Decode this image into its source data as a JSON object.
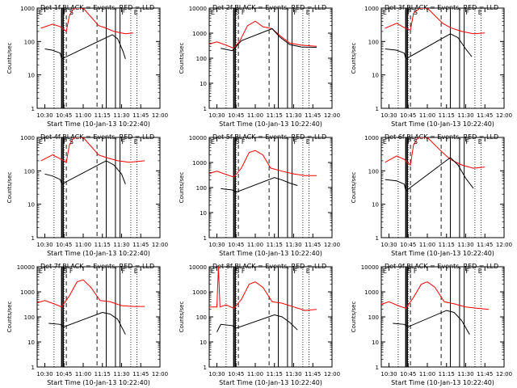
{
  "chart_data": [
    {
      "type": "line",
      "title": "Det 1f BLACK = Events, RED = LLD",
      "xlabel": "Start Time (10-Jan-13 10:22:40)",
      "ylabel": "Counts/sec",
      "xticks": [
        "10:30",
        "10:45",
        "11:00",
        "11:15",
        "11:30",
        "11:45",
        "12:00"
      ],
      "yticks": [
        "1",
        "10",
        "100",
        "1000"
      ],
      "ylim": [
        1,
        1000
      ],
      "yscale": "log",
      "flag_letters": [
        "E",
        "F",
        "S",
        "F",
        "E"
      ],
      "series": [
        {
          "color": "#ff0000",
          "points": [
            [
              10.45,
              250
            ],
            [
              10.6,
              330
            ],
            [
              10.7,
              280
            ],
            [
              10.78,
              200
            ],
            [
              10.82,
              600
            ],
            [
              10.88,
              1000
            ],
            [
              11.0,
              1000
            ],
            [
              11.2,
              300
            ],
            [
              11.3,
              250
            ],
            [
              11.4,
              200
            ],
            [
              11.55,
              170
            ],
            [
              11.65,
              180
            ]
          ]
        },
        {
          "color": "#000000",
          "points": [
            [
              10.5,
              60
            ],
            [
              10.6,
              55
            ],
            [
              10.7,
              45
            ],
            [
              10.72,
              30
            ],
            [
              11.38,
              160
            ],
            [
              11.45,
              120
            ],
            [
              11.52,
              50
            ],
            [
              11.55,
              30
            ]
          ]
        }
      ]
    },
    {
      "type": "line",
      "title": "Det 2f BLACK = Events, RED = LLD",
      "xlabel": "Start Time (10-Jan-13 10:22:40)",
      "ylabel": "Counts/sec",
      "xticks": [
        "10:30",
        "10:45",
        "11:00",
        "11:15",
        "11:30",
        "11:45",
        "12:00"
      ],
      "yticks": [
        "1",
        "10",
        "100",
        "1000",
        "10000"
      ],
      "ylim": [
        1,
        10000
      ],
      "yscale": "log",
      "flag_letters": [
        "E",
        "S",
        "F",
        "F",
        "E"
      ],
      "series": [
        {
          "color": "#ff0000",
          "points": [
            [
              10.38,
              350
            ],
            [
              10.5,
              450
            ],
            [
              10.62,
              330
            ],
            [
              10.72,
              250
            ],
            [
              10.8,
              500
            ],
            [
              10.9,
              2000
            ],
            [
              11.0,
              3000
            ],
            [
              11.1,
              1800
            ],
            [
              11.22,
              1500
            ],
            [
              11.32,
              800
            ],
            [
              11.45,
              400
            ],
            [
              11.6,
              330
            ],
            [
              11.8,
              300
            ]
          ]
        },
        {
          "color": "#000000",
          "points": [
            [
              10.55,
              250
            ],
            [
              10.7,
              200
            ],
            [
              10.82,
              500
            ],
            [
              11.22,
              1500
            ],
            [
              11.32,
              700
            ],
            [
              11.45,
              350
            ],
            [
              11.6,
              280
            ],
            [
              11.8,
              270
            ]
          ]
        }
      ]
    },
    {
      "type": "line",
      "title": "Det 3f BLACK = Events, RED = LLD",
      "xlabel": "Start Time (10-Jan-13 10:22:40)",
      "ylabel": "Counts/sec",
      "xticks": [
        "10:30",
        "10:45",
        "11:00",
        "11:15",
        "11:30",
        "11:45",
        "12:00"
      ],
      "yticks": [
        "1",
        "10",
        "100",
        "1000"
      ],
      "ylim": [
        1,
        1000
      ],
      "yscale": "log",
      "flag_letters": [
        "E",
        "F",
        "S",
        "F",
        "E"
      ],
      "series": [
        {
          "color": "#ff0000",
          "points": [
            [
              10.45,
              250
            ],
            [
              10.6,
              350
            ],
            [
              10.7,
              260
            ],
            [
              10.78,
              220
            ],
            [
              10.82,
              700
            ],
            [
              10.9,
              1000
            ],
            [
              11.0,
              1000
            ],
            [
              11.2,
              350
            ],
            [
              11.3,
              260
            ],
            [
              11.45,
              200
            ],
            [
              11.6,
              170
            ],
            [
              11.75,
              180
            ]
          ]
        },
        {
          "color": "#000000",
          "points": [
            [
              10.45,
              60
            ],
            [
              10.6,
              55
            ],
            [
              10.7,
              45
            ],
            [
              10.72,
              30
            ],
            [
              11.3,
              170
            ],
            [
              11.4,
              130
            ],
            [
              11.5,
              60
            ],
            [
              11.58,
              35
            ]
          ]
        }
      ]
    },
    {
      "type": "line",
      "title": "Det 4f BLACK = Events, RED = LLD",
      "xlabel": "Start Time (10-Jan-13 10:22:40)",
      "ylabel": "Counts/sec",
      "xticks": [
        "10:30",
        "10:45",
        "11:00",
        "11:15",
        "11:30",
        "11:45",
        "12:00"
      ],
      "yticks": [
        "1",
        "10",
        "100",
        "1000"
      ],
      "ylim": [
        1,
        1000
      ],
      "yscale": "log",
      "flag_letters": [
        "E",
        "F",
        "S",
        "F",
        "E"
      ],
      "series": [
        {
          "color": "#ff0000",
          "points": [
            [
              10.45,
              200
            ],
            [
              10.6,
              300
            ],
            [
              10.7,
              230
            ],
            [
              10.78,
              180
            ],
            [
              10.82,
              600
            ],
            [
              10.88,
              1000
            ],
            [
              11.0,
              1000
            ],
            [
              11.2,
              300
            ],
            [
              11.3,
              250
            ],
            [
              11.45,
              200
            ],
            [
              11.6,
              180
            ],
            [
              11.8,
              200
            ]
          ]
        },
        {
          "color": "#000000",
          "points": [
            [
              10.5,
              80
            ],
            [
              10.6,
              70
            ],
            [
              10.7,
              55
            ],
            [
              10.72,
              40
            ],
            [
              11.3,
              200
            ],
            [
              11.4,
              150
            ],
            [
              11.5,
              80
            ],
            [
              11.55,
              40
            ]
          ]
        }
      ]
    },
    {
      "type": "line",
      "title": "Det 5f BLACK = Events, RED = LLD",
      "xlabel": "Start Time (10-Jan-13 10:22:40)",
      "ylabel": "Counts/sec",
      "xticks": [
        "10:30",
        "10:45",
        "11:00",
        "11:15",
        "11:30",
        "11:45",
        "12:00"
      ],
      "yticks": [
        "1",
        "10",
        "100",
        "1000",
        "10000"
      ],
      "ylim": [
        1,
        10000
      ],
      "yscale": "log",
      "flag_letters": [
        "E",
        "S",
        "F",
        "F",
        "E"
      ],
      "series": [
        {
          "color": "#ff0000",
          "points": [
            [
              10.38,
              350
            ],
            [
              10.5,
              450
            ],
            [
              10.62,
              330
            ],
            [
              10.72,
              260
            ],
            [
              10.82,
              600
            ],
            [
              10.92,
              2500
            ],
            [
              11.0,
              3000
            ],
            [
              11.1,
              2000
            ],
            [
              11.2,
              600
            ],
            [
              11.35,
              450
            ],
            [
              11.5,
              350
            ],
            [
              11.65,
              300
            ],
            [
              11.8,
              300
            ]
          ]
        },
        {
          "color": "#000000",
          "points": [
            [
              10.55,
              90
            ],
            [
              10.7,
              80
            ],
            [
              10.75,
              65
            ],
            [
              11.25,
              250
            ],
            [
              11.35,
              200
            ],
            [
              11.45,
              150
            ],
            [
              11.55,
              120
            ]
          ]
        }
      ]
    },
    {
      "type": "line",
      "title": "Det 6f BLACK = Events, RED = LLD",
      "xlabel": "Start Time (10-Jan-13 10:22:40)",
      "ylabel": "Counts/sec",
      "xticks": [
        "10:30",
        "10:45",
        "11:00",
        "11:15",
        "11:30",
        "11:45",
        "12:00"
      ],
      "yticks": [
        "1",
        "10",
        "100",
        "1000"
      ],
      "ylim": [
        1,
        1000
      ],
      "yscale": "log",
      "flag_letters": [
        "E",
        "F",
        "S",
        "F",
        "E"
      ],
      "series": [
        {
          "color": "#ff0000",
          "points": [
            [
              10.45,
              180
            ],
            [
              10.6,
              280
            ],
            [
              10.7,
              220
            ],
            [
              10.78,
              150
            ],
            [
              10.82,
              600
            ],
            [
              10.88,
              1000
            ],
            [
              11.0,
              1000
            ],
            [
              11.2,
              350
            ],
            [
              11.3,
              220
            ],
            [
              11.45,
              150
            ],
            [
              11.6,
              120
            ],
            [
              11.75,
              130
            ]
          ]
        },
        {
          "color": "#000000",
          "points": [
            [
              10.45,
              55
            ],
            [
              10.6,
              50
            ],
            [
              10.7,
              40
            ],
            [
              10.72,
              25
            ],
            [
              11.3,
              250
            ],
            [
              11.4,
              150
            ],
            [
              11.5,
              60
            ],
            [
              11.6,
              30
            ]
          ]
        }
      ]
    },
    {
      "type": "line",
      "title": "Det 7f BLACK = Events, RED = LLD",
      "xlabel": "Start Time (10-Jan-13 10:22:40)",
      "ylabel": "Counts/sec",
      "xticks": [
        "10:30",
        "10:45",
        "11:00",
        "11:15",
        "11:30",
        "11:45",
        "12:00"
      ],
      "yticks": [
        "1",
        "10",
        "100",
        "1000",
        "10000"
      ],
      "ylim": [
        1,
        10000
      ],
      "yscale": "log",
      "flag_letters": [
        "E",
        "S",
        "F",
        "F",
        "E"
      ],
      "series": [
        {
          "color": "#ff0000",
          "points": [
            [
              10.38,
              350
            ],
            [
              10.5,
              450
            ],
            [
              10.62,
              330
            ],
            [
              10.72,
              250
            ],
            [
              10.82,
              700
            ],
            [
              10.92,
              2500
            ],
            [
              11.0,
              3000
            ],
            [
              11.1,
              1500
            ],
            [
              11.22,
              450
            ],
            [
              11.35,
              400
            ],
            [
              11.5,
              280
            ],
            [
              11.65,
              260
            ],
            [
              11.8,
              260
            ]
          ]
        },
        {
          "color": "#000000",
          "points": [
            [
              10.55,
              55
            ],
            [
              10.7,
              50
            ],
            [
              10.75,
              40
            ],
            [
              11.25,
              150
            ],
            [
              11.35,
              130
            ],
            [
              11.45,
              80
            ],
            [
              11.55,
              20
            ]
          ]
        }
      ]
    },
    {
      "type": "line",
      "title": "Det 8f BLACK = Events, RED = LLD",
      "xlabel": "Start Time (10-Jan-13 10:22:40)",
      "ylabel": "Counts/sec",
      "xticks": [
        "10:30",
        "10:45",
        "11:00",
        "11:15",
        "11:30",
        "11:45",
        "12:00"
      ],
      "yticks": [
        "1",
        "10",
        "100",
        "1000",
        "10000"
      ],
      "ylim": [
        1,
        10000
      ],
      "yscale": "log",
      "flag_letters": [
        "E",
        "S",
        "F",
        "F",
        "E"
      ],
      "series": [
        {
          "color": "#ff0000",
          "points": [
            [
              10.38,
              250
            ],
            [
              10.5,
              250
            ],
            [
              10.52,
              10000
            ],
            [
              10.54,
              250
            ],
            [
              10.62,
              300
            ],
            [
              10.72,
              220
            ],
            [
              10.82,
              500
            ],
            [
              10.92,
              2000
            ],
            [
              11.0,
              2500
            ],
            [
              11.1,
              1500
            ],
            [
              11.22,
              400
            ],
            [
              11.35,
              350
            ],
            [
              11.5,
              250
            ],
            [
              11.65,
              180
            ],
            [
              11.8,
              200
            ]
          ]
        },
        {
          "color": "#000000",
          "points": [
            [
              10.5,
              25
            ],
            [
              10.55,
              50
            ],
            [
              10.7,
              45
            ],
            [
              10.75,
              35
            ],
            [
              11.25,
              120
            ],
            [
              11.35,
              100
            ],
            [
              11.45,
              60
            ],
            [
              11.55,
              30
            ]
          ]
        }
      ]
    },
    {
      "type": "line",
      "title": "Det 9f BLACK = Events, RED = LLD",
      "xlabel": "Start Time (10-Jan-13 10:22:40)",
      "ylabel": "Counts/sec",
      "xticks": [
        "10:30",
        "10:45",
        "11:00",
        "11:15",
        "11:30",
        "11:45",
        "12:00"
      ],
      "yticks": [
        "1",
        "10",
        "100",
        "1000",
        "10000"
      ],
      "ylim": [
        1,
        10000
      ],
      "yscale": "log",
      "flag_letters": [
        "E",
        "S",
        "F",
        "F",
        "E"
      ],
      "series": [
        {
          "color": "#ff0000",
          "points": [
            [
              10.38,
              300
            ],
            [
              10.5,
              400
            ],
            [
              10.62,
              280
            ],
            [
              10.72,
              220
            ],
            [
              10.82,
              600
            ],
            [
              10.92,
              2000
            ],
            [
              11.0,
              2500
            ],
            [
              11.1,
              1500
            ],
            [
              11.22,
              400
            ],
            [
              11.35,
              330
            ],
            [
              11.5,
              250
            ],
            [
              11.65,
              220
            ],
            [
              11.8,
              200
            ]
          ]
        },
        {
          "color": "#000000",
          "points": [
            [
              10.55,
              55
            ],
            [
              10.7,
              50
            ],
            [
              10.75,
              40
            ],
            [
              11.25,
              180
            ],
            [
              11.35,
              150
            ],
            [
              11.45,
              70
            ],
            [
              11.55,
              20
            ]
          ]
        }
      ]
    }
  ]
}
